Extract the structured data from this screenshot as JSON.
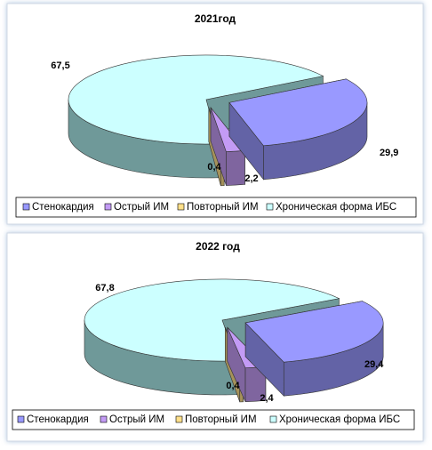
{
  "chart_data": [
    {
      "type": "pie",
      "title": "2021год",
      "categories": [
        "Стенокардия",
        "Острый ИМ",
        "Повторный ИМ",
        "Хроническая форма ИБС"
      ],
      "values": [
        29.9,
        2.2,
        0.4,
        67.5
      ],
      "value_labels": [
        "29,9",
        "2,2",
        "0,4",
        "67,5"
      ],
      "colors": [
        "#9999ff",
        "#c39bf5",
        "#ffe08a",
        "#ccffff"
      ]
    },
    {
      "type": "pie",
      "title": "2022 год",
      "categories": [
        "Стенокардия",
        "Острый ИМ",
        "Повторный ИМ",
        "Хроническая форма ИБС"
      ],
      "values": [
        29.4,
        2.4,
        0.4,
        67.8
      ],
      "value_labels": [
        "29,4",
        "2,4",
        "0,4",
        "67,8"
      ],
      "colors": [
        "#9999ff",
        "#c39bf5",
        "#ffe08a",
        "#ccffff"
      ]
    }
  ]
}
